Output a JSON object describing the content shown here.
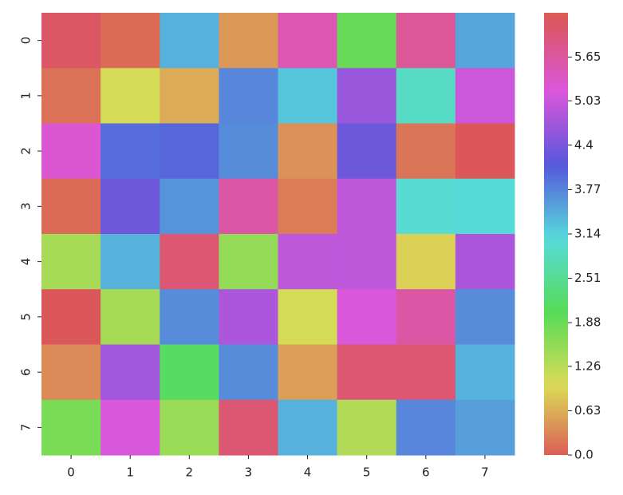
{
  "chart_data": {
    "type": "heatmap",
    "x": [
      "0",
      "1",
      "2",
      "3",
      "4",
      "5",
      "6",
      "7"
    ],
    "y": [
      "0",
      "1",
      "2",
      "3",
      "4",
      "5",
      "6",
      "7"
    ],
    "values": [
      [
        6.1,
        0.1,
        3.4,
        0.45,
        5.5,
        1.9,
        5.7,
        3.5
      ],
      [
        0.15,
        1.05,
        0.6,
        3.75,
        3.25,
        4.65,
        2.9,
        5.05
      ],
      [
        5.25,
        3.95,
        4.0,
        3.7,
        0.4,
        4.3,
        0.18,
        6.2
      ],
      [
        0.1,
        4.3,
        3.65,
        5.6,
        0.25,
        4.95,
        3.0,
        3.05
      ],
      [
        1.4,
        3.4,
        6.0,
        1.55,
        4.95,
        4.95,
        0.9,
        4.8
      ],
      [
        6.2,
        1.4,
        3.7,
        4.8,
        1.05,
        5.15,
        5.6,
        3.7
      ],
      [
        0.35,
        4.7,
        2.1,
        3.7,
        0.5,
        6.0,
        6.0,
        3.4
      ],
      [
        1.75,
        5.15,
        1.5,
        6.0,
        3.4,
        1.3,
        3.75,
        3.55
      ]
    ],
    "colormap": "hls",
    "clim": [
      0,
      6.28
    ],
    "cticks": [
      {
        "value": 0,
        "label": "0.0"
      },
      0.63,
      1.26,
      1.88,
      2.51,
      3.14,
      3.77,
      4.4,
      5.03,
      5.65
    ]
  }
}
